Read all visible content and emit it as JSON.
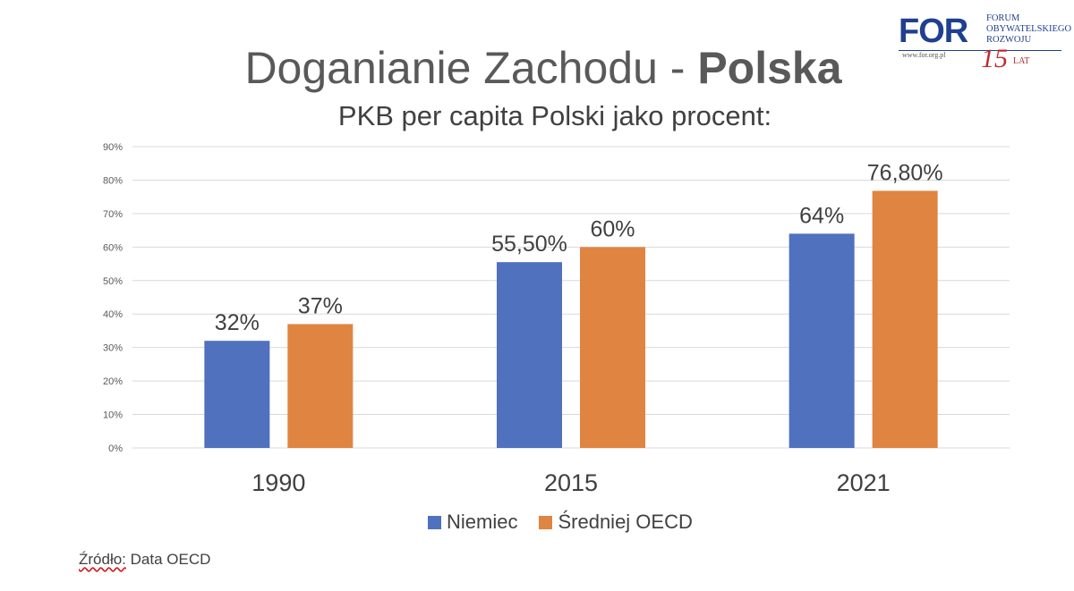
{
  "header": {
    "title_regular": "Doganianie Zachodu - ",
    "title_bold": "Polska",
    "subtitle": "PKB per capita Polski jako procent:"
  },
  "logo": {
    "acronym": "FOR",
    "name_lines": [
      "FORUM",
      "OBYWATELSKIEGO",
      "ROZWOJU"
    ],
    "url": "www.for.org.pl",
    "anniversary_number": "15",
    "anniversary_word": "LAT"
  },
  "source": {
    "label": "Źródło:",
    "text": " Data OECD"
  },
  "chart_data": {
    "type": "bar",
    "categories": [
      "1990",
      "2015",
      "2021"
    ],
    "series": [
      {
        "name": "Niemiec",
        "values": [
          32,
          55.5,
          64
        ],
        "labels": [
          "32%",
          "55,50%",
          "64%"
        ],
        "color": "#4f71be"
      },
      {
        "name": "Średniej OECD",
        "values": [
          37,
          60,
          76.8
        ],
        "labels": [
          "37%",
          "60%",
          "76,80%"
        ],
        "color": "#e08442"
      }
    ],
    "yticks": [
      "0%",
      "10%",
      "20%",
      "30%",
      "40%",
      "50%",
      "60%",
      "70%",
      "80%",
      "90%"
    ],
    "ylim": [
      0,
      90
    ],
    "grid": true,
    "legend": "bottom"
  }
}
